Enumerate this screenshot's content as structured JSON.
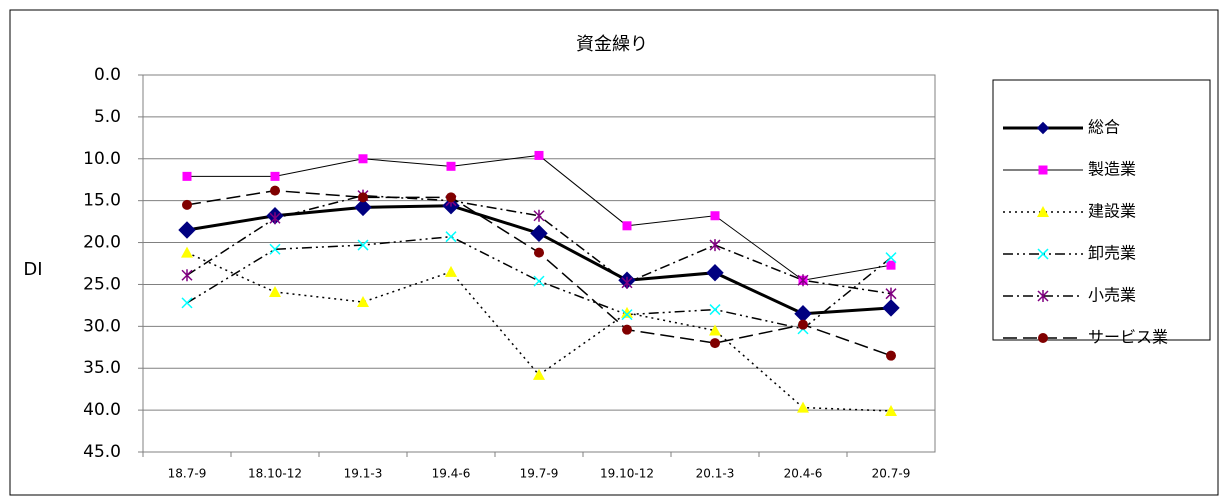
{
  "chart_data": {
    "type": "line",
    "title": "資金繰り",
    "y_label": "DI",
    "categories": [
      "18.7-9",
      "18.10-12",
      "19.1-3",
      "19.4-6",
      "19.7-9",
      "19.10-12",
      "20.1-3",
      "20.4-6",
      "20.7-9"
    ],
    "ylim": [
      0,
      45
    ],
    "y_inverted": true,
    "yticks": [
      {
        "value": 0,
        "label": "0.0"
      },
      {
        "value": 5,
        "label": "5.0"
      },
      {
        "value": 10,
        "label": "10.0"
      },
      {
        "value": 15,
        "label": "15.0"
      },
      {
        "value": 20,
        "label": "20.0"
      },
      {
        "value": 25,
        "label": "25.0"
      },
      {
        "value": 30,
        "label": "30.0"
      },
      {
        "value": 35,
        "label": "35.0"
      },
      {
        "value": 40,
        "label": "40.0"
      },
      {
        "value": 45,
        "label": "45.0"
      }
    ],
    "grid": true,
    "legend": "right",
    "series": [
      {
        "name": "総合",
        "color": "#000080",
        "line_color": "#000000",
        "line_style": "bold",
        "marker": "diamond",
        "values": [
          18.5,
          16.8,
          15.8,
          15.6,
          18.9,
          24.5,
          23.6,
          28.5,
          27.8
        ]
      },
      {
        "name": "製造業",
        "color": "#ff00ff",
        "line_color": "#000000",
        "line_style": "thin",
        "marker": "square",
        "values": [
          12.1,
          12.1,
          10.0,
          10.9,
          9.6,
          18.0,
          16.8,
          24.5,
          22.7
        ]
      },
      {
        "name": "建設業",
        "color": "#ffff00",
        "line_color": "#000000",
        "line_style": "dotted",
        "marker": "triangle",
        "values": [
          21.2,
          25.9,
          27.1,
          23.5,
          35.8,
          28.4,
          30.5,
          39.7,
          40.1
        ]
      },
      {
        "name": "卸売業",
        "color": "#00ffff",
        "line_color": "#000000",
        "line_style": "dashdotdot",
        "marker": "cross",
        "values": [
          27.2,
          20.8,
          20.3,
          19.3,
          24.6,
          28.6,
          28.0,
          30.3,
          21.8
        ]
      },
      {
        "name": "小売業",
        "color": "#800080",
        "line_color": "#000000",
        "line_style": "dashdot",
        "marker": "star",
        "values": [
          23.9,
          17.1,
          14.4,
          15.0,
          16.8,
          24.8,
          20.3,
          24.5,
          26.1
        ]
      },
      {
        "name": "サービス業",
        "color": "#800000",
        "line_color": "#000000",
        "line_style": "longdash",
        "marker": "circle",
        "values": [
          15.5,
          13.8,
          14.6,
          14.6,
          21.2,
          30.4,
          32.0,
          29.8,
          33.5
        ]
      }
    ]
  }
}
